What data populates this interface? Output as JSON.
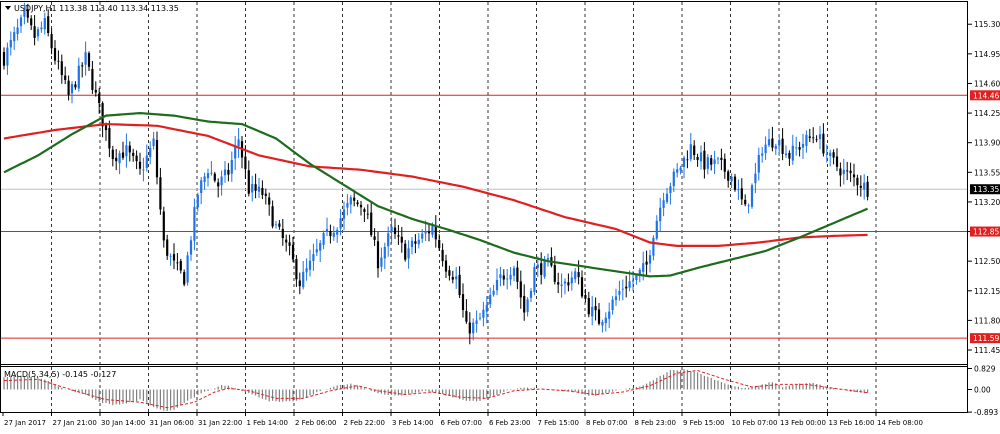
{
  "chart_data": [
    {
      "type": "candlestick",
      "title": "USDJPY,H1 113.38 113.40 113.34 113.35",
      "symbol": "USDJPY,H1",
      "ohlc_header": [
        "113.38",
        "113.40",
        "113.34",
        "113.35"
      ],
      "ylim": [
        111.3,
        115.5
      ],
      "y_ticks": [
        "115.30",
        "114.95",
        "114.60",
        "114.25",
        "113.90",
        "113.55",
        "113.20",
        "112.85",
        "112.50",
        "112.15",
        "111.80",
        "111.45"
      ],
      "current_price": {
        "label": "113.35",
        "value": 113.35
      },
      "horizontal_levels": [
        {
          "label": "114.46",
          "value": 114.46
        },
        {
          "label": "112.85",
          "value": 112.85
        },
        {
          "label": "111.59",
          "value": 111.59
        }
      ],
      "x_tick_labels": [
        "27 Jan 2017",
        "27 Jan 21:00",
        "30 Jan 14:00",
        "31 Jan 06:00",
        "31 Jan 22:00",
        "1 Feb 14:00",
        "2 Feb 06:00",
        "2 Feb 22:00",
        "3 Feb 14:00",
        "6 Feb 07:00",
        "6 Feb 23:00",
        "7 Feb 15:00",
        "8 Feb 07:00",
        "8 Feb 23:00",
        "9 Feb 15:00",
        "10 Feb 07:00",
        "13 Feb 00:00",
        "13 Feb 16:00",
        "14 Feb 08:00"
      ],
      "close_path_anchors": [
        [
          0,
          114.9
        ],
        [
          3,
          115.15
        ],
        [
          6,
          115.38
        ],
        [
          9,
          115.15
        ],
        [
          12,
          115.3
        ],
        [
          15,
          114.9
        ],
        [
          19,
          114.45
        ],
        [
          24,
          114.9
        ],
        [
          28,
          114.3
        ],
        [
          32,
          113.75
        ],
        [
          36,
          113.8
        ],
        [
          40,
          113.55
        ],
        [
          44,
          113.9
        ],
        [
          47,
          112.7
        ],
        [
          50,
          112.45
        ],
        [
          53,
          112.3
        ],
        [
          57,
          113.3
        ],
        [
          60,
          113.6
        ],
        [
          63,
          113.4
        ],
        [
          66,
          113.55
        ],
        [
          69,
          113.95
        ],
        [
          72,
          113.35
        ],
        [
          76,
          113.3
        ],
        [
          80,
          112.9
        ],
        [
          84,
          112.6
        ],
        [
          87,
          112.25
        ],
        [
          90,
          112.45
        ],
        [
          94,
          112.75
        ],
        [
          98,
          112.95
        ],
        [
          102,
          113.2
        ],
        [
          106,
          113.15
        ],
        [
          110,
          112.5
        ],
        [
          114,
          112.85
        ],
        [
          118,
          112.6
        ],
        [
          122,
          112.75
        ],
        [
          126,
          112.9
        ],
        [
          130,
          112.45
        ],
        [
          133,
          112.3
        ],
        [
          136,
          111.7
        ],
        [
          139,
          111.75
        ],
        [
          142,
          111.95
        ],
        [
          146,
          112.3
        ],
        [
          150,
          112.45
        ],
        [
          153,
          111.9
        ],
        [
          156,
          112.4
        ],
        [
          160,
          112.45
        ],
        [
          164,
          112.2
        ],
        [
          168,
          112.35
        ],
        [
          172,
          111.95
        ],
        [
          175,
          111.8
        ],
        [
          178,
          111.95
        ],
        [
          182,
          112.2
        ],
        [
          186,
          112.3
        ],
        [
          189,
          112.45
        ],
        [
          191,
          112.85
        ],
        [
          194,
          113.3
        ],
        [
          198,
          113.55
        ],
        [
          202,
          113.85
        ],
        [
          206,
          113.65
        ],
        [
          210,
          113.65
        ],
        [
          214,
          113.5
        ],
        [
          218,
          113.1
        ],
        [
          221,
          113.5
        ],
        [
          223,
          113.85
        ],
        [
          227,
          113.95
        ],
        [
          231,
          113.75
        ],
        [
          235,
          113.9
        ],
        [
          239,
          114.0
        ],
        [
          243,
          113.7
        ],
        [
          247,
          113.55
        ],
        [
          251,
          113.45
        ],
        [
          254,
          113.35
        ]
      ],
      "moving_averages": [
        {
          "color": "#e02020",
          "anchors": [
            [
              0,
              113.95
            ],
            [
              15,
              114.05
            ],
            [
              30,
              114.12
            ],
            [
              45,
              114.1
            ],
            [
              60,
              113.98
            ],
            [
              75,
              113.75
            ],
            [
              90,
              113.62
            ],
            [
              105,
              113.58
            ],
            [
              120,
              113.5
            ],
            [
              135,
              113.38
            ],
            [
              150,
              113.22
            ],
            [
              165,
              113.02
            ],
            [
              180,
              112.88
            ],
            [
              190,
              112.72
            ],
            [
              198,
              112.68
            ],
            [
              210,
              112.68
            ],
            [
              222,
              112.72
            ],
            [
              234,
              112.78
            ],
            [
              245,
              112.8
            ],
            [
              254,
              112.81
            ]
          ]
        },
        {
          "color": "#1d6b1d",
          "anchors": [
            [
              0,
              113.55
            ],
            [
              10,
              113.75
            ],
            [
              20,
              114.0
            ],
            [
              30,
              114.22
            ],
            [
              40,
              114.25
            ],
            [
              50,
              114.22
            ],
            [
              60,
              114.15
            ],
            [
              70,
              114.12
            ],
            [
              80,
              113.95
            ],
            [
              90,
              113.65
            ],
            [
              100,
              113.4
            ],
            [
              110,
              113.15
            ],
            [
              120,
              113.0
            ],
            [
              130,
              112.88
            ],
            [
              140,
              112.75
            ],
            [
              150,
              112.6
            ],
            [
              160,
              112.5
            ],
            [
              170,
              112.44
            ],
            [
              180,
              112.38
            ],
            [
              190,
              112.32
            ],
            [
              196,
              112.33
            ],
            [
              204,
              112.42
            ],
            [
              214,
              112.52
            ],
            [
              224,
              112.62
            ],
            [
              234,
              112.78
            ],
            [
              244,
              112.95
            ],
            [
              254,
              113.12
            ]
          ]
        }
      ]
    },
    {
      "type": "bar",
      "title": "MACD(5,34,5) -0.145 -0.127",
      "label": "MACD(5,34,5)",
      "values_header": [
        "-0.145",
        "-0.127"
      ],
      "ylim": [
        -0.893,
        0.829
      ],
      "y_ticks": [
        "0.829",
        "0.00",
        "-0.893"
      ],
      "histogram_anchors": [
        [
          0,
          0.5
        ],
        [
          6,
          0.55
        ],
        [
          10,
          0.48
        ],
        [
          14,
          0.3
        ],
        [
          17,
          0.05
        ],
        [
          20,
          -0.05
        ],
        [
          24,
          -0.2
        ],
        [
          28,
          -0.5
        ],
        [
          32,
          -0.6
        ],
        [
          36,
          -0.55
        ],
        [
          40,
          -0.4
        ],
        [
          44,
          -0.7
        ],
        [
          47,
          -0.85
        ],
        [
          50,
          -0.82
        ],
        [
          54,
          -0.45
        ],
        [
          58,
          -0.15
        ],
        [
          62,
          0.05
        ],
        [
          64,
          0.18
        ],
        [
          66,
          0.15
        ],
        [
          70,
          -0.05
        ],
        [
          74,
          -0.25
        ],
        [
          78,
          -0.45
        ],
        [
          82,
          -0.5
        ],
        [
          86,
          -0.45
        ],
        [
          90,
          -0.25
        ],
        [
          94,
          0.0
        ],
        [
          98,
          0.15
        ],
        [
          102,
          0.22
        ],
        [
          105,
          0.1
        ],
        [
          108,
          -0.05
        ],
        [
          112,
          -0.2
        ],
        [
          116,
          -0.25
        ],
        [
          120,
          -0.15
        ],
        [
          124,
          -0.05
        ],
        [
          128,
          -0.15
        ],
        [
          132,
          -0.3
        ],
        [
          136,
          -0.45
        ],
        [
          140,
          -0.45
        ],
        [
          144,
          -0.25
        ],
        [
          148,
          -0.05
        ],
        [
          152,
          0.08
        ],
        [
          156,
          0.05
        ],
        [
          160,
          -0.02
        ],
        [
          164,
          -0.05
        ],
        [
          168,
          -0.1
        ],
        [
          172,
          -0.25
        ],
        [
          175,
          -0.22
        ],
        [
          180,
          -0.05
        ],
        [
          184,
          0.05
        ],
        [
          188,
          0.15
        ],
        [
          192,
          0.45
        ],
        [
          196,
          0.75
        ],
        [
          200,
          0.8
        ],
        [
          203,
          0.72
        ],
        [
          206,
          0.55
        ],
        [
          210,
          0.35
        ],
        [
          214,
          0.15
        ],
        [
          218,
          0.05
        ],
        [
          222,
          0.15
        ],
        [
          226,
          0.3
        ],
        [
          229,
          0.1
        ],
        [
          234,
          0.22
        ],
        [
          238,
          0.25
        ],
        [
          242,
          0.1
        ],
        [
          246,
          0.0
        ],
        [
          250,
          -0.1
        ],
        [
          254,
          -0.145
        ]
      ],
      "signal_anchors": [
        [
          0,
          0.35
        ],
        [
          10,
          0.4
        ],
        [
          16,
          0.15
        ],
        [
          22,
          -0.1
        ],
        [
          30,
          -0.4
        ],
        [
          40,
          -0.5
        ],
        [
          48,
          -0.72
        ],
        [
          56,
          -0.5
        ],
        [
          62,
          -0.1
        ],
        [
          66,
          0.05
        ],
        [
          72,
          -0.05
        ],
        [
          80,
          -0.35
        ],
        [
          88,
          -0.35
        ],
        [
          96,
          -0.05
        ],
        [
          104,
          0.15
        ],
        [
          110,
          -0.05
        ],
        [
          118,
          -0.2
        ],
        [
          126,
          -0.1
        ],
        [
          134,
          -0.3
        ],
        [
          142,
          -0.35
        ],
        [
          150,
          -0.05
        ],
        [
          158,
          0.02
        ],
        [
          166,
          -0.06
        ],
        [
          174,
          -0.2
        ],
        [
          182,
          -0.1
        ],
        [
          190,
          0.15
        ],
        [
          198,
          0.65
        ],
        [
          204,
          0.75
        ],
        [
          212,
          0.4
        ],
        [
          220,
          0.1
        ],
        [
          228,
          0.2
        ],
        [
          236,
          0.2
        ],
        [
          244,
          0.05
        ],
        [
          254,
          -0.127
        ]
      ]
    }
  ]
}
